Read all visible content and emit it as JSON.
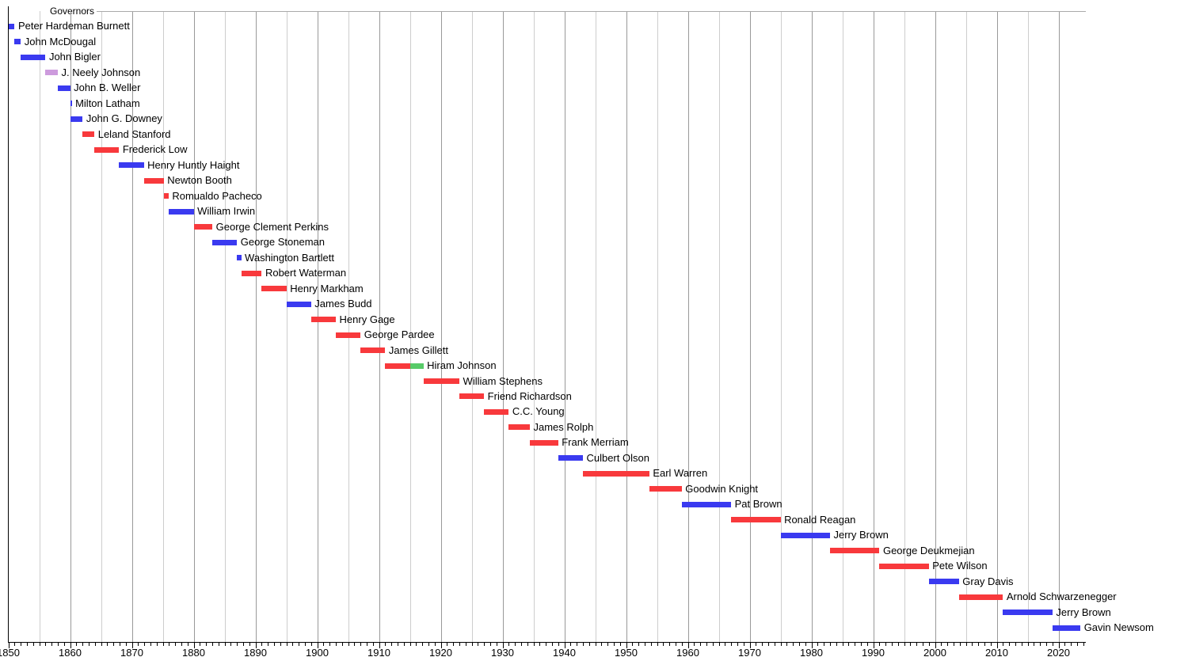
{
  "chart_data": {
    "type": "timeline",
    "title": "Governors",
    "x_axis": {
      "min": 1850,
      "max": 2024.3,
      "tick_labels": [
        "1850",
        "1860",
        "1870",
        "1880",
        "1890",
        "1900",
        "1910",
        "1920",
        "1930",
        "1940",
        "1950",
        "1960",
        "1970",
        "1980",
        "1990",
        "2000",
        "2010",
        "2020"
      ],
      "minor_tick_interval": 1,
      "gridline_interval_light": 5,
      "gridline_interval_dark": 10,
      "grid": true
    },
    "party_colors": {
      "democratic": "#3a3af0",
      "republican": "#f8393c",
      "american": "#cd9bdd",
      "progressive": "#57cb68"
    },
    "governors": [
      {
        "name": "Peter Hardeman Burnett",
        "segments": [
          {
            "party": "democratic",
            "from": 1850.0,
            "to": 1851.02
          }
        ]
      },
      {
        "name": "John McDougal",
        "segments": [
          {
            "party": "democratic",
            "from": 1851.02,
            "to": 1852.02
          }
        ]
      },
      {
        "name": "John Bigler",
        "segments": [
          {
            "party": "democratic",
            "from": 1852.02,
            "to": 1856.02
          }
        ]
      },
      {
        "name": "J. Neely Johnson",
        "segments": [
          {
            "party": "american",
            "from": 1856.02,
            "to": 1858.02
          }
        ]
      },
      {
        "name": "John B. Weller",
        "segments": [
          {
            "party": "democratic",
            "from": 1858.02,
            "to": 1860.02
          }
        ]
      },
      {
        "name": "Milton Latham",
        "segments": [
          {
            "party": "democratic",
            "from": 1860.02,
            "to": 1860.27
          }
        ]
      },
      {
        "name": "John G. Downey",
        "segments": [
          {
            "party": "democratic",
            "from": 1860.04,
            "to": 1862.03
          }
        ]
      },
      {
        "name": "Leland Stanford",
        "segments": [
          {
            "party": "republican",
            "from": 1862.03,
            "to": 1863.94
          }
        ]
      },
      {
        "name": "Frederick Low",
        "segments": [
          {
            "party": "republican",
            "from": 1863.94,
            "to": 1867.93
          }
        ]
      },
      {
        "name": "Henry Huntly Haight",
        "segments": [
          {
            "party": "democratic",
            "from": 1867.93,
            "to": 1871.94
          }
        ]
      },
      {
        "name": "Newton Booth",
        "segments": [
          {
            "party": "republican",
            "from": 1871.94,
            "to": 1875.16
          }
        ]
      },
      {
        "name": "Romualdo Pacheco",
        "segments": [
          {
            "party": "republican",
            "from": 1875.16,
            "to": 1875.94
          }
        ]
      },
      {
        "name": "William Irwin",
        "segments": [
          {
            "party": "democratic",
            "from": 1875.94,
            "to": 1880.02
          }
        ]
      },
      {
        "name": "George Clement Perkins",
        "segments": [
          {
            "party": "republican",
            "from": 1880.02,
            "to": 1883.03
          }
        ]
      },
      {
        "name": "George Stoneman",
        "segments": [
          {
            "party": "democratic",
            "from": 1883.03,
            "to": 1887.02
          }
        ]
      },
      {
        "name": "Washington Bartlett",
        "segments": [
          {
            "party": "democratic",
            "from": 1887.02,
            "to": 1887.7
          }
        ]
      },
      {
        "name": "Robert Waterman",
        "segments": [
          {
            "party": "republican",
            "from": 1887.7,
            "to": 1891.02
          }
        ]
      },
      {
        "name": "Henry Markham",
        "segments": [
          {
            "party": "republican",
            "from": 1891.02,
            "to": 1895.03
          }
        ]
      },
      {
        "name": "James Budd",
        "segments": [
          {
            "party": "democratic",
            "from": 1895.03,
            "to": 1899.01
          }
        ]
      },
      {
        "name": "Henry Gage",
        "segments": [
          {
            "party": "republican",
            "from": 1899.01,
            "to": 1903.02
          }
        ]
      },
      {
        "name": "George Pardee",
        "segments": [
          {
            "party": "republican",
            "from": 1903.02,
            "to": 1907.02
          }
        ]
      },
      {
        "name": "James Gillett",
        "segments": [
          {
            "party": "republican",
            "from": 1907.02,
            "to": 1911.01
          }
        ]
      },
      {
        "name": "Hiram Johnson",
        "segments": [
          {
            "party": "republican",
            "from": 1911.01,
            "to": 1915.01
          },
          {
            "party": "progressive",
            "from": 1915.01,
            "to": 1917.2
          }
        ]
      },
      {
        "name": "William Stephens",
        "segments": [
          {
            "party": "republican",
            "from": 1917.2,
            "to": 1923.02
          }
        ]
      },
      {
        "name": "Friend Richardson",
        "segments": [
          {
            "party": "republican",
            "from": 1923.02,
            "to": 1927.01
          }
        ]
      },
      {
        "name": "C.C. Young",
        "segments": [
          {
            "party": "republican",
            "from": 1927.01,
            "to": 1931.01
          }
        ]
      },
      {
        "name": "James Rolph",
        "segments": [
          {
            "party": "republican",
            "from": 1931.01,
            "to": 1934.42
          }
        ]
      },
      {
        "name": "Frank Merriam",
        "segments": [
          {
            "party": "republican",
            "from": 1934.42,
            "to": 1939.0
          }
        ]
      },
      {
        "name": "Culbert Olson",
        "segments": [
          {
            "party": "democratic",
            "from": 1939.0,
            "to": 1943.01
          }
        ]
      },
      {
        "name": "Earl Warren",
        "segments": [
          {
            "party": "republican",
            "from": 1943.01,
            "to": 1953.76
          }
        ]
      },
      {
        "name": "Goodwin Knight",
        "segments": [
          {
            "party": "republican",
            "from": 1953.76,
            "to": 1959.01
          }
        ]
      },
      {
        "name": "Pat Brown",
        "segments": [
          {
            "party": "democratic",
            "from": 1959.01,
            "to": 1967.0
          }
        ]
      },
      {
        "name": "Ronald Reagan",
        "segments": [
          {
            "party": "republican",
            "from": 1967.0,
            "to": 1975.01
          }
        ]
      },
      {
        "name": "Jerry Brown",
        "segments": [
          {
            "party": "democratic",
            "from": 1975.01,
            "to": 1983.01
          }
        ]
      },
      {
        "name": "George Deukmejian",
        "segments": [
          {
            "party": "republican",
            "from": 1983.01,
            "to": 1991.02
          }
        ]
      },
      {
        "name": "Pete Wilson",
        "segments": [
          {
            "party": "republican",
            "from": 1991.02,
            "to": 1999.01
          }
        ]
      },
      {
        "name": "Gray Davis",
        "segments": [
          {
            "party": "democratic",
            "from": 1999.01,
            "to": 2003.88
          }
        ]
      },
      {
        "name": "Arnold Schwarzenegger",
        "segments": [
          {
            "party": "republican",
            "from": 2003.88,
            "to": 2011.01
          }
        ]
      },
      {
        "name": "Jerry Brown",
        "segments": [
          {
            "party": "democratic",
            "from": 2011.01,
            "to": 2019.02
          }
        ]
      },
      {
        "name": "Gavin Newsom",
        "segments": [
          {
            "party": "democratic",
            "from": 2019.02,
            "to": 2023.55
          }
        ]
      }
    ]
  }
}
